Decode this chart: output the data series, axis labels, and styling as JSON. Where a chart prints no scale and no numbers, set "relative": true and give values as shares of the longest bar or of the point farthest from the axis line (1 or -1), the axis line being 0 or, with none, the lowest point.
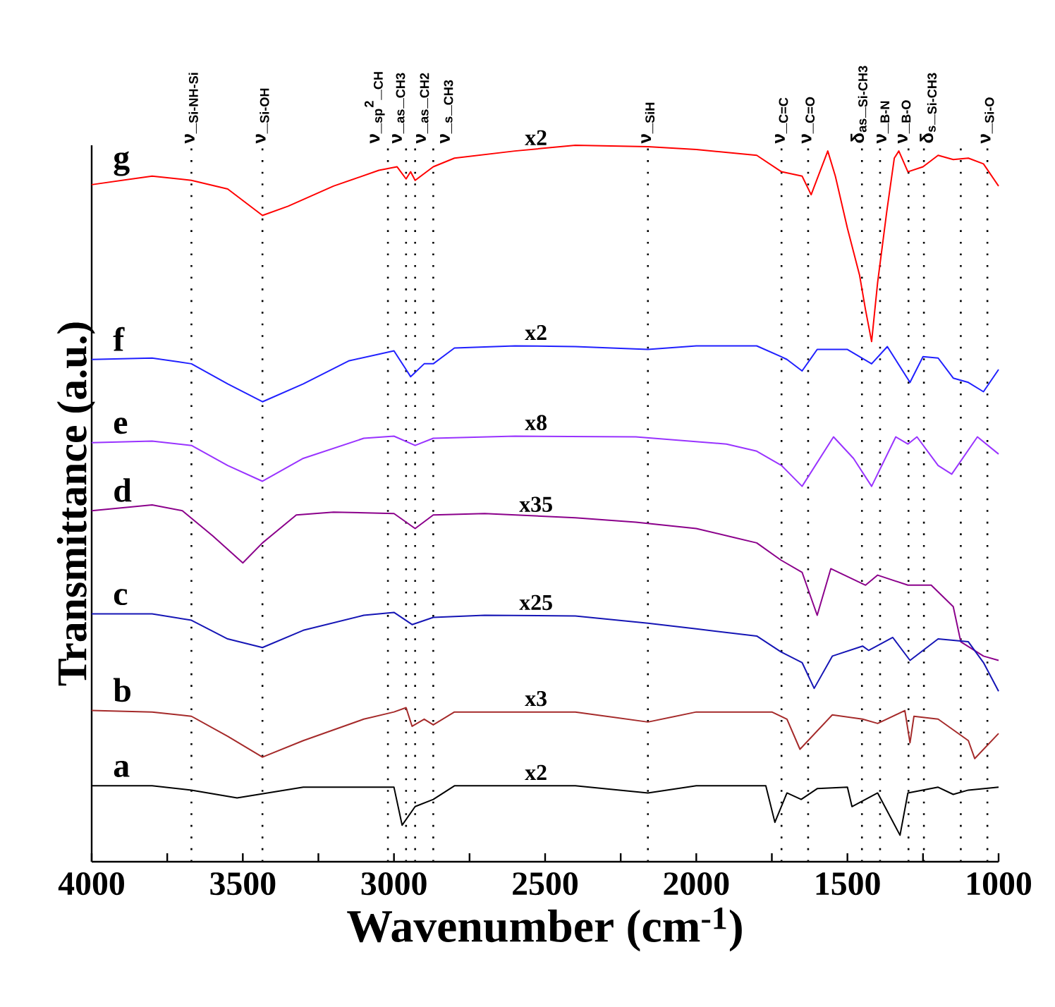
{
  "chart_data": {
    "type": "line",
    "xlabel": "Wavenumber (cm$^{-1}$)",
    "ylabel": "Transmittance (a.u.)",
    "relative": true,
    "xlim": [
      4000,
      1000
    ],
    "xticks": [
      4000,
      {
        "value": 3750,
        "label": null
      },
      3500,
      {
        "value": 3250,
        "label": null
      },
      3000,
      {
        "value": 2750,
        "label": null
      },
      2500,
      {
        "value": 2250,
        "label": null
      },
      2000,
      {
        "value": 1750,
        "label": null
      },
      1500,
      {
        "value": 1250,
        "label": null
      },
      1000
    ],
    "series": [
      {
        "name": "g",
        "color": "#ff0000",
        "x": [
          4000,
          3800,
          3670,
          3550,
          3435,
          3350,
          3200,
          3050,
          2990,
          2960,
          2945,
          2930,
          2870,
          2800,
          2600,
          2400,
          2160,
          2000,
          1800,
          1718,
          1650,
          1620,
          1565,
          1540,
          1500,
          1460,
          1440,
          1420,
          1400,
          1370,
          1345,
          1330,
          1300,
          1250,
          1200,
          1150,
          1100,
          1050,
          1000
        ],
        "values": [
          0.945,
          0.957,
          0.951,
          0.939,
          0.902,
          0.915,
          0.943,
          0.965,
          0.97,
          0.953,
          0.963,
          0.951,
          0.97,
          0.982,
          0.992,
          1.0,
          0.998,
          0.994,
          0.986,
          0.963,
          0.957,
          0.931,
          0.992,
          0.957,
          0.884,
          0.819,
          0.77,
          0.726,
          0.809,
          0.907,
          0.982,
          0.992,
          0.963,
          0.97,
          0.986,
          0.98,
          0.982,
          0.974,
          0.943
        ]
      },
      {
        "name": "f",
        "color": "#2020ff",
        "x": [
          4000,
          3800,
          3670,
          3550,
          3435,
          3300,
          3150,
          3000,
          2960,
          2945,
          2900,
          2870,
          2800,
          2600,
          2400,
          2160,
          2000,
          1800,
          1720,
          1700,
          1650,
          1600,
          1500,
          1420,
          1368,
          1293,
          1250,
          1200,
          1150,
          1100,
          1050,
          1000
        ],
        "values": [
          0.701,
          0.703,
          0.695,
          0.667,
          0.642,
          0.667,
          0.699,
          0.713,
          0.687,
          0.677,
          0.695,
          0.695,
          0.717,
          0.72,
          0.719,
          0.715,
          0.72,
          0.72,
          0.705,
          0.701,
          0.685,
          0.715,
          0.715,
          0.695,
          0.719,
          0.669,
          0.705,
          0.703,
          0.675,
          0.669,
          0.656,
          0.687
        ]
      },
      {
        "name": "e",
        "color": "#9933ff",
        "x": [
          4000,
          3800,
          3670,
          3550,
          3435,
          3300,
          3100,
          3000,
          2930,
          2870,
          2600,
          2200,
          1900,
          1800,
          1718,
          1650,
          1546,
          1480,
          1420,
          1340,
          1300,
          1270,
          1200,
          1155,
          1070,
          1000
        ],
        "values": [
          0.585,
          0.587,
          0.581,
          0.553,
          0.531,
          0.563,
          0.591,
          0.594,
          0.581,
          0.591,
          0.594,
          0.593,
          0.583,
          0.573,
          0.553,
          0.524,
          0.593,
          0.563,
          0.524,
          0.593,
          0.583,
          0.593,
          0.553,
          0.541,
          0.593,
          0.569
        ]
      },
      {
        "name": "d",
        "color": "#8b008b",
        "x": [
          4000,
          3800,
          3700,
          3600,
          3500,
          3435,
          3323,
          3200,
          3000,
          2930,
          2870,
          2700,
          2400,
          2200,
          2000,
          1800,
          1720,
          1650,
          1600,
          1555,
          1440,
          1400,
          1300,
          1223,
          1150,
          1125,
          1050,
          1000
        ],
        "values": [
          0.49,
          0.498,
          0.49,
          0.455,
          0.417,
          0.445,
          0.484,
          0.488,
          0.486,
          0.465,
          0.484,
          0.486,
          0.48,
          0.474,
          0.465,
          0.445,
          0.421,
          0.404,
          0.344,
          0.409,
          0.386,
          0.4,
          0.386,
          0.386,
          0.356,
          0.307,
          0.287,
          0.281
        ]
      },
      {
        "name": "c",
        "color": "#1515b5",
        "x": [
          4000,
          3800,
          3670,
          3550,
          3435,
          3300,
          3100,
          3000,
          2940,
          2870,
          2700,
          2400,
          2160,
          2000,
          1800,
          1720,
          1650,
          1610,
          1550,
          1450,
          1430,
          1350,
          1293,
          1200,
          1100,
          1050,
          1000
        ],
        "values": [
          0.346,
          0.346,
          0.337,
          0.311,
          0.299,
          0.323,
          0.344,
          0.348,
          0.331,
          0.341,
          0.344,
          0.343,
          0.333,
          0.325,
          0.315,
          0.293,
          0.278,
          0.242,
          0.287,
          0.301,
          0.295,
          0.313,
          0.281,
          0.311,
          0.307,
          0.278,
          0.238
        ]
      },
      {
        "name": "b",
        "color": "#a52a2a",
        "x": [
          4000,
          3800,
          3670,
          3550,
          3435,
          3300,
          3100,
          3000,
          2960,
          2940,
          2900,
          2870,
          2800,
          2400,
          2160,
          2000,
          1750,
          1700,
          1657,
          1550,
          1450,
          1400,
          1310,
          1293,
          1280,
          1200,
          1100,
          1079,
          1000
        ],
        "values": [
          0.211,
          0.209,
          0.203,
          0.175,
          0.146,
          0.169,
          0.199,
          0.209,
          0.215,
          0.189,
          0.199,
          0.191,
          0.209,
          0.209,
          0.195,
          0.209,
          0.209,
          0.199,
          0.157,
          0.205,
          0.199,
          0.193,
          0.211,
          0.166,
          0.203,
          0.199,
          0.169,
          0.144,
          0.179
        ]
      },
      {
        "name": "a",
        "color": "#000000",
        "x": [
          4000,
          3800,
          3670,
          3519,
          3300,
          3000,
          2973,
          2930,
          2870,
          2800,
          2400,
          2160,
          2000,
          1770,
          1740,
          1700,
          1653,
          1600,
          1500,
          1485,
          1400,
          1326,
          1300,
          1200,
          1150,
          1100,
          1000
        ],
        "values": [
          0.106,
          0.106,
          0.1,
          0.089,
          0.104,
          0.104,
          0.051,
          0.077,
          0.087,
          0.106,
          0.106,
          0.096,
          0.106,
          0.106,
          0.055,
          0.096,
          0.087,
          0.102,
          0.104,
          0.077,
          0.096,
          0.037,
          0.096,
          0.104,
          0.094,
          0.1,
          0.104
        ]
      }
    ],
    "ref_lines": [
      {
        "axis": "x",
        "value": 3670,
        "label": "ν_$_{Si-NH-Si}$",
        "color": "#000000",
        "line_style": "dotted"
      },
      {
        "axis": "x",
        "value": 3435,
        "label": "ν_$_{Si-OH}$",
        "color": "#000000",
        "line_style": "dotted"
      },
      {
        "axis": "x",
        "value": 3020,
        "label": "ν_$_{sp}$$^{2}$_$_{CH}$",
        "color": "#000000",
        "line_style": "dotted"
      },
      {
        "axis": "x",
        "value": 2960,
        "label": "ν_$_{as}$_$_{CH3}$",
        "color": "#000000",
        "line_style": "dotted"
      },
      {
        "axis": "x",
        "value": 2930,
        "label": "ν_$_{as}$_$_{CH2}$",
        "color": "#000000",
        "line_style": "dotted"
      },
      {
        "axis": "x",
        "value": 2870,
        "label": "ν_$_{s}$_$_{CH3}$",
        "color": "#000000",
        "line_style": "dotted"
      },
      {
        "axis": "x",
        "value": 2160,
        "label": "ν_$_{SiH}$",
        "color": "#000000",
        "line_style": "dotted"
      },
      {
        "axis": "x",
        "value": 1718,
        "label": "ν_$_{C=C}$",
        "color": "#000000",
        "line_style": "dotted"
      },
      {
        "axis": "x",
        "value": 1630,
        "label": "ν_$_{C=O}$",
        "color": "#000000",
        "line_style": "dotted"
      },
      {
        "axis": "x",
        "value": 1452,
        "label": "δ$_{as}$_$_{Si-CH3}$",
        "color": "#000000",
        "line_style": "dotted"
      },
      {
        "axis": "x",
        "value": 1392,
        "label": "ν_$_{B-N}$",
        "color": "#000000",
        "line_style": "dotted"
      },
      {
        "axis": "x",
        "value": 1298,
        "label": "ν_$_{B-O}$",
        "color": "#000000",
        "line_style": "dotted"
      },
      {
        "axis": "x",
        "value": 1247,
        "label": "δ$_{s}$_$_{Si-CH3}$",
        "color": "#000000",
        "line_style": "dotted"
      },
      {
        "axis": "x",
        "value": 1125,
        "color": "#000000",
        "line_style": "dotted"
      },
      {
        "axis": "x",
        "value": 1037,
        "label": "ν_$_{Si-O}$",
        "color": "#000000",
        "line_style": "dotted"
      }
    ],
    "annotations": [
      "x2",
      "x2",
      "x8",
      "x35",
      "x25",
      "x3",
      "x2"
    ]
  }
}
